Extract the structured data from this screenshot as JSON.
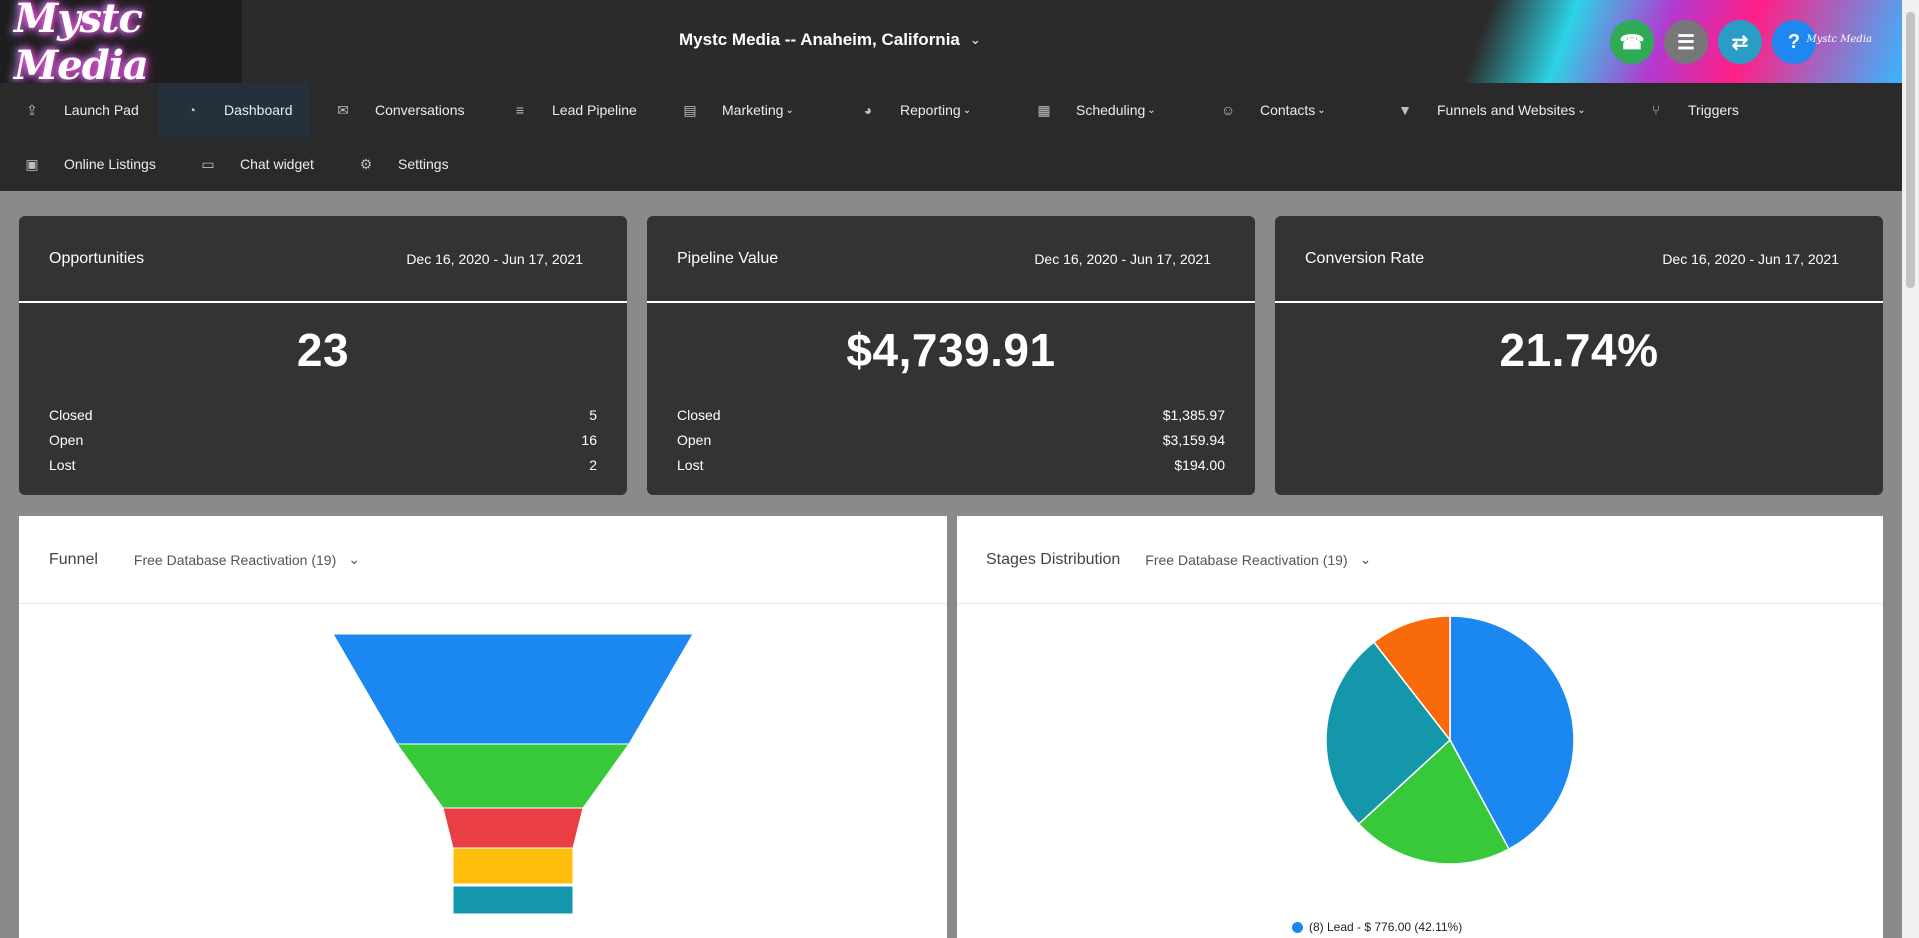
{
  "brand": {
    "name": "Mystc Media",
    "mini": "Mystc Media"
  },
  "location": {
    "label": "Mystc Media -- Anaheim, California"
  },
  "top_buttons": [
    {
      "name": "phone-button",
      "icon": "phone-icon",
      "glyph": "☎",
      "color": "#2faa55"
    },
    {
      "name": "tasks-button",
      "icon": "list-icon",
      "glyph": "☰",
      "color": "#777777"
    },
    {
      "name": "switch-account-button",
      "icon": "swap-icon",
      "glyph": "⇄",
      "color": "#2a9cc5"
    },
    {
      "name": "help-button",
      "icon": "help-icon",
      "glyph": "?",
      "color": "#1e88f0"
    }
  ],
  "nav": [
    {
      "label": "Launch Pad",
      "icon": "rocket-icon",
      "glyph": "⇪"
    },
    {
      "label": "Dashboard",
      "icon": "gauge-icon",
      "glyph": "◔"
    },
    {
      "label": "Conversations",
      "icon": "chat-icon",
      "glyph": "✉"
    },
    {
      "label": "Lead Pipeline",
      "icon": "pipeline-icon",
      "glyph": "≡"
    },
    {
      "label": "Marketing",
      "icon": "marketing-icon",
      "glyph": "▤"
    },
    {
      "label": "Reporting",
      "icon": "pie-chart-icon",
      "glyph": "◕"
    },
    {
      "label": "Scheduling",
      "icon": "calendar-icon",
      "glyph": "▦"
    },
    {
      "label": "Contacts",
      "icon": "users-icon",
      "glyph": "☺"
    },
    {
      "label": "Funnels and Websites",
      "icon": "filter-icon",
      "glyph": "▼"
    },
    {
      "label": "Triggers",
      "icon": "branch-icon",
      "glyph": "⑂"
    },
    {
      "label": "Online Listings",
      "icon": "listing-icon",
      "glyph": "▣"
    },
    {
      "label": "Chat widget",
      "icon": "comment-icon",
      "glyph": "▭"
    },
    {
      "label": "Settings",
      "icon": "gear-icon",
      "glyph": "⚙"
    }
  ],
  "cards": [
    {
      "title": "Opportunities",
      "date": "Dec 16, 2020 - Jun 17, 2021",
      "value": "23",
      "stats": [
        {
          "label": "Closed",
          "value": "5"
        },
        {
          "label": "Open",
          "value": "16"
        },
        {
          "label": "Lost",
          "value": "2"
        }
      ]
    },
    {
      "title": "Pipeline Value",
      "date": "Dec 16, 2020 - Jun 17, 2021",
      "value": "$4,739.91",
      "stats": [
        {
          "label": "Closed",
          "value": "$1,385.97"
        },
        {
          "label": "Open",
          "value": "$3,159.94"
        },
        {
          "label": "Lost",
          "value": "$194.00"
        }
      ]
    },
    {
      "title": "Conversion Rate",
      "date": "Dec 16, 2020 - Jun 17, 2021",
      "value": "21.74%",
      "stats": []
    }
  ],
  "funnel_panel": {
    "title": "Funnel",
    "select": "Free Database Reactivation (19)"
  },
  "stages_panel": {
    "title": "Stages Distribution",
    "select": "Free Database Reactivation (19)",
    "legend_first": "(8) Lead - $ 776.00 (42.11%)"
  },
  "chart_data": [
    {
      "type": "funnel",
      "title": "Funnel",
      "series": [
        {
          "color": "#1a88f0"
        },
        {
          "color": "#37c93a"
        },
        {
          "color": "#ea3e45"
        },
        {
          "color": "#ffbe0b"
        },
        {
          "color": "#1497ab"
        }
      ]
    },
    {
      "type": "pie",
      "title": "Stages Distribution",
      "slices": [
        {
          "label": "(8) Lead - $ 776.00 (42.11%)",
          "percent": 42.11,
          "color": "#1a88f0"
        },
        {
          "percent": 21.05,
          "color": "#37c93a"
        },
        {
          "percent": 26.32,
          "color": "#1497ab"
        },
        {
          "percent": 10.52,
          "color": "#f96b0a"
        }
      ]
    }
  ]
}
